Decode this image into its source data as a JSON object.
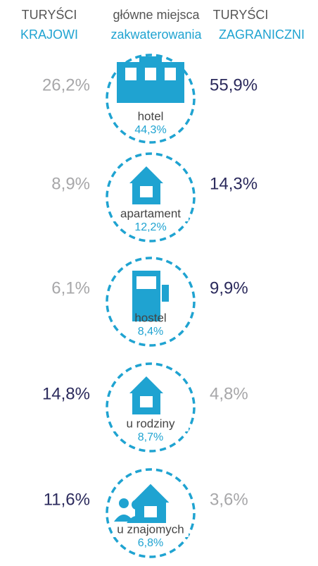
{
  "header": {
    "left": [
      "TURYŚCI",
      "KRAJOWI"
    ],
    "center": [
      "główne miejsca",
      "zakwaterowania"
    ],
    "right": [
      "TURYŚCI",
      "ZAGRANICZNI"
    ]
  },
  "rows": [
    {
      "name": "hotel",
      "share": "44,3%",
      "domestic": {
        "text": "26,2%",
        "color": "#a7a7a9"
      },
      "foreign": {
        "text": "55,9%",
        "color": "#2b2a5c"
      }
    },
    {
      "name": "apartament",
      "share": "12,2%",
      "domestic": {
        "text": "8,9%",
        "color": "#a7a7a9"
      },
      "foreign": {
        "text": "14,3%",
        "color": "#2b2a5c"
      }
    },
    {
      "name": "hostel",
      "share": "8,4%",
      "domestic": {
        "text": "6,1%",
        "color": "#a7a7a9"
      },
      "foreign": {
        "text": "9,9%",
        "color": "#2b2a5c"
      }
    },
    {
      "name": "u rodziny",
      "share": "8,7%",
      "domestic": {
        "text": "14,8%",
        "color": "#2b2a5c"
      },
      "foreign": {
        "text": "4,8%",
        "color": "#a7a7a9"
      }
    },
    {
      "name": "u znajomych",
      "share": "6,8%",
      "domestic": {
        "text": "11,6%",
        "color": "#2b2a5c"
      },
      "foreign": {
        "text": "3,6%",
        "color": "#a7a7a9"
      }
    }
  ]
}
